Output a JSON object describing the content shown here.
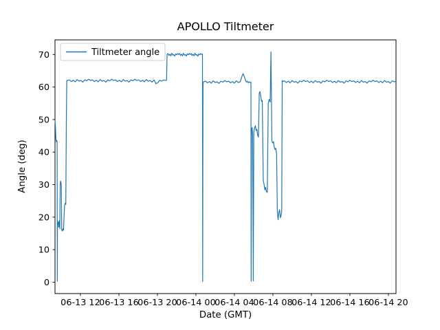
{
  "chart_data": {
    "type": "line",
    "title": "APOLLO Tiltmeter",
    "xlabel": "Date (GMT)",
    "ylabel": "Angle (deg)",
    "legend": [
      "Tiltmeter angle"
    ],
    "legend_position": "upper left",
    "grid": false,
    "line_color": "#1f77b4",
    "x_unit": "hours since 06-13 00:00 GMT",
    "xlim": [
      9.36,
      44.79
    ],
    "ylim": [
      -3.5,
      74.5
    ],
    "y_ticks": [
      0,
      10,
      20,
      30,
      40,
      50,
      60,
      70
    ],
    "x_ticks": [
      {
        "value": 12,
        "label": "06-13 12"
      },
      {
        "value": 16,
        "label": "06-13 16"
      },
      {
        "value": 20,
        "label": "06-13 20"
      },
      {
        "value": 24,
        "label": "06-14 00"
      },
      {
        "value": 28,
        "label": "06-14 04"
      },
      {
        "value": 32,
        "label": "06-14 08"
      },
      {
        "value": 36,
        "label": "06-14 12"
      },
      {
        "value": 40,
        "label": "06-14 16"
      },
      {
        "value": 44,
        "label": "06-14 20"
      }
    ],
    "series": [
      {
        "name": "Tiltmeter angle",
        "points": [
          [
            9.36,
            49.8
          ],
          [
            9.4,
            48.0
          ],
          [
            9.43,
            45.5
          ],
          [
            9.46,
            43.8
          ],
          [
            9.5,
            43.2
          ],
          [
            9.55,
            43.6
          ],
          [
            9.58,
            43.0
          ],
          [
            9.6,
            0.3
          ],
          [
            9.62,
            18.5
          ],
          [
            9.66,
            17.8
          ],
          [
            9.7,
            18.6
          ],
          [
            9.74,
            16.9
          ],
          [
            9.78,
            17.5
          ],
          [
            9.82,
            18.9
          ],
          [
            9.86,
            16.4
          ],
          [
            9.9,
            30.3
          ],
          [
            9.94,
            31.1
          ],
          [
            9.98,
            30.6
          ],
          [
            10.02,
            29.7
          ],
          [
            10.06,
            16.1
          ],
          [
            10.12,
            15.7
          ],
          [
            10.18,
            16.4
          ],
          [
            10.24,
            16.0
          ],
          [
            10.35,
            23.6
          ],
          [
            10.42,
            24.3
          ],
          [
            10.48,
            23.9
          ],
          [
            10.54,
            49.6
          ],
          [
            10.58,
            62.0
          ],
          [
            10.65,
            62.0
          ],
          [
            10.85,
            62.2
          ],
          [
            11.05,
            61.7
          ],
          [
            11.25,
            62.1
          ],
          [
            11.45,
            61.6
          ],
          [
            11.65,
            62.3
          ],
          [
            11.85,
            61.8
          ],
          [
            12.05,
            62.0
          ],
          [
            12.25,
            61.5
          ],
          [
            12.45,
            62.2
          ],
          [
            12.65,
            61.9
          ],
          [
            12.85,
            62.4
          ],
          [
            13.05,
            62.0
          ],
          [
            13.25,
            62.2
          ],
          [
            13.45,
            61.7
          ],
          [
            13.65,
            62.1
          ],
          [
            13.85,
            61.6
          ],
          [
            14.05,
            62.3
          ],
          [
            14.25,
            61.8
          ],
          [
            14.45,
            62.0
          ],
          [
            14.65,
            61.5
          ],
          [
            14.85,
            62.2
          ],
          [
            15.05,
            61.9
          ],
          [
            15.25,
            62.4
          ],
          [
            15.45,
            62.0
          ],
          [
            15.65,
            62.2
          ],
          [
            15.85,
            61.7
          ],
          [
            16.05,
            62.1
          ],
          [
            16.25,
            61.6
          ],
          [
            16.45,
            62.3
          ],
          [
            16.65,
            61.8
          ],
          [
            16.85,
            62.0
          ],
          [
            17.05,
            61.5
          ],
          [
            17.25,
            62.2
          ],
          [
            17.45,
            61.9
          ],
          [
            17.65,
            62.4
          ],
          [
            17.85,
            62.0
          ],
          [
            18.05,
            62.2
          ],
          [
            18.25,
            61.7
          ],
          [
            18.45,
            62.1
          ],
          [
            18.65,
            61.6
          ],
          [
            18.85,
            62.3
          ],
          [
            19.05,
            61.8
          ],
          [
            19.25,
            62.0
          ],
          [
            19.45,
            61.5
          ],
          [
            19.65,
            62.2
          ],
          [
            19.85,
            61.0
          ],
          [
            20.05,
            61.4
          ],
          [
            20.25,
            62.1
          ],
          [
            20.45,
            61.8
          ],
          [
            20.65,
            62.2
          ],
          [
            20.85,
            62.0
          ],
          [
            20.95,
            62.1
          ],
          [
            21.0,
            70.0
          ],
          [
            21.1,
            70.3
          ],
          [
            21.2,
            69.7
          ],
          [
            21.3,
            70.1
          ],
          [
            21.4,
            69.6
          ],
          [
            21.5,
            70.4
          ],
          [
            21.6,
            69.8
          ],
          [
            21.7,
            70.0
          ],
          [
            21.8,
            69.5
          ],
          [
            21.9,
            70.2
          ],
          [
            22.0,
            69.9
          ],
          [
            22.1,
            70.3
          ],
          [
            22.2,
            70.0
          ],
          [
            22.3,
            70.3
          ],
          [
            22.4,
            69.7
          ],
          [
            22.5,
            70.1
          ],
          [
            22.6,
            69.6
          ],
          [
            22.7,
            70.4
          ],
          [
            22.8,
            69.8
          ],
          [
            22.9,
            70.0
          ],
          [
            23.0,
            69.5
          ],
          [
            23.1,
            70.2
          ],
          [
            23.2,
            69.9
          ],
          [
            23.3,
            70.3
          ],
          [
            23.4,
            70.0
          ],
          [
            23.5,
            70.3
          ],
          [
            23.6,
            69.7
          ],
          [
            23.7,
            70.1
          ],
          [
            23.8,
            69.6
          ],
          [
            23.9,
            70.4
          ],
          [
            24.0,
            69.8
          ],
          [
            24.1,
            70.0
          ],
          [
            24.2,
            69.5
          ],
          [
            24.3,
            70.2
          ],
          [
            24.4,
            69.9
          ],
          [
            24.5,
            70.3
          ],
          [
            24.6,
            70.0
          ],
          [
            24.68,
            70.1
          ],
          [
            24.7,
            0.2
          ],
          [
            24.74,
            61.0
          ],
          [
            24.8,
            61.6
          ],
          [
            25.0,
            61.8
          ],
          [
            25.2,
            61.3
          ],
          [
            25.4,
            61.7
          ],
          [
            25.6,
            61.2
          ],
          [
            25.8,
            61.9
          ],
          [
            26.0,
            61.4
          ],
          [
            26.2,
            61.6
          ],
          [
            26.4,
            61.1
          ],
          [
            26.6,
            61.8
          ],
          [
            26.8,
            61.5
          ],
          [
            27.0,
            62.0
          ],
          [
            27.2,
            61.6
          ],
          [
            27.4,
            61.8
          ],
          [
            27.6,
            61.3
          ],
          [
            27.8,
            61.7
          ],
          [
            28.0,
            61.2
          ],
          [
            28.2,
            61.9
          ],
          [
            28.4,
            61.4
          ],
          [
            28.6,
            61.6
          ],
          [
            28.7,
            62.4
          ],
          [
            28.78,
            63.3
          ],
          [
            28.86,
            63.9
          ],
          [
            28.92,
            64.1
          ],
          [
            29.0,
            63.4
          ],
          [
            29.08,
            62.8
          ],
          [
            29.16,
            62.0
          ],
          [
            29.25,
            61.5
          ],
          [
            29.35,
            61.8
          ],
          [
            29.45,
            61.3
          ],
          [
            29.55,
            61.6
          ],
          [
            29.65,
            61.4
          ],
          [
            29.72,
            61.5
          ],
          [
            29.74,
            0.3
          ],
          [
            29.78,
            46.8
          ],
          [
            29.84,
            47.6
          ],
          [
            29.9,
            45.4
          ],
          [
            29.96,
            0.4
          ],
          [
            30.02,
            46.3
          ],
          [
            30.1,
            47.4
          ],
          [
            30.18,
            48.1
          ],
          [
            30.26,
            46.6
          ],
          [
            30.34,
            47.0
          ],
          [
            30.42,
            45.2
          ],
          [
            30.5,
            44.6
          ],
          [
            30.58,
            58.2
          ],
          [
            30.66,
            58.6
          ],
          [
            30.74,
            57.1
          ],
          [
            30.82,
            55.6
          ],
          [
            30.9,
            55.9
          ],
          [
            31.0,
            31.2
          ],
          [
            31.08,
            30.1
          ],
          [
            31.16,
            28.4
          ],
          [
            31.24,
            29.2
          ],
          [
            31.32,
            27.9
          ],
          [
            31.42,
            27.6
          ],
          [
            31.52,
            55.1
          ],
          [
            31.62,
            56.2
          ],
          [
            31.72,
            55.4
          ],
          [
            31.8,
            70.8
          ],
          [
            31.9,
            43.5
          ],
          [
            31.98,
            42.8
          ],
          [
            32.06,
            43.2
          ],
          [
            32.14,
            41.5
          ],
          [
            32.22,
            40.8
          ],
          [
            32.3,
            41.2
          ],
          [
            32.38,
            39.6
          ],
          [
            32.46,
            21.8
          ],
          [
            32.54,
            19.2
          ],
          [
            32.62,
            21.4
          ],
          [
            32.7,
            22.3
          ],
          [
            32.78,
            19.8
          ],
          [
            32.86,
            20.6
          ],
          [
            32.92,
            22.0
          ],
          [
            32.97,
            62.0
          ],
          [
            33.0,
            61.7
          ],
          [
            33.2,
            61.9
          ],
          [
            33.4,
            61.4
          ],
          [
            33.6,
            61.8
          ],
          [
            33.8,
            61.3
          ],
          [
            34.0,
            62.0
          ],
          [
            34.2,
            61.5
          ],
          [
            34.4,
            61.7
          ],
          [
            34.6,
            61.2
          ],
          [
            34.8,
            61.9
          ],
          [
            35.0,
            61.6
          ],
          [
            35.2,
            62.1
          ],
          [
            35.4,
            61.7
          ],
          [
            35.6,
            61.9
          ],
          [
            35.8,
            61.4
          ],
          [
            36.0,
            61.8
          ],
          [
            36.2,
            61.3
          ],
          [
            36.4,
            62.0
          ],
          [
            36.6,
            61.5
          ],
          [
            36.8,
            61.7
          ],
          [
            37.0,
            61.2
          ],
          [
            37.2,
            61.9
          ],
          [
            37.4,
            61.6
          ],
          [
            37.6,
            62.1
          ],
          [
            37.8,
            61.7
          ],
          [
            38.0,
            61.9
          ],
          [
            38.2,
            61.4
          ],
          [
            38.4,
            61.8
          ],
          [
            38.6,
            61.3
          ],
          [
            38.8,
            62.0
          ],
          [
            39.0,
            61.5
          ],
          [
            39.2,
            61.7
          ],
          [
            39.4,
            61.2
          ],
          [
            39.6,
            61.9
          ],
          [
            39.8,
            61.6
          ],
          [
            40.0,
            62.1
          ],
          [
            40.2,
            61.7
          ],
          [
            40.4,
            61.9
          ],
          [
            40.6,
            61.4
          ],
          [
            40.8,
            61.8
          ],
          [
            41.0,
            61.3
          ],
          [
            41.2,
            62.0
          ],
          [
            41.4,
            61.5
          ],
          [
            41.6,
            61.7
          ],
          [
            41.8,
            61.2
          ],
          [
            42.0,
            61.9
          ],
          [
            42.2,
            61.6
          ],
          [
            42.4,
            62.1
          ],
          [
            42.6,
            61.7
          ],
          [
            42.8,
            61.9
          ],
          [
            43.0,
            61.4
          ],
          [
            43.2,
            61.8
          ],
          [
            43.4,
            61.3
          ],
          [
            43.6,
            62.0
          ],
          [
            43.8,
            61.5
          ],
          [
            44.0,
            61.7
          ],
          [
            44.2,
            61.2
          ],
          [
            44.4,
            61.9
          ],
          [
            44.6,
            61.6
          ],
          [
            44.78,
            61.8
          ]
        ]
      }
    ]
  }
}
